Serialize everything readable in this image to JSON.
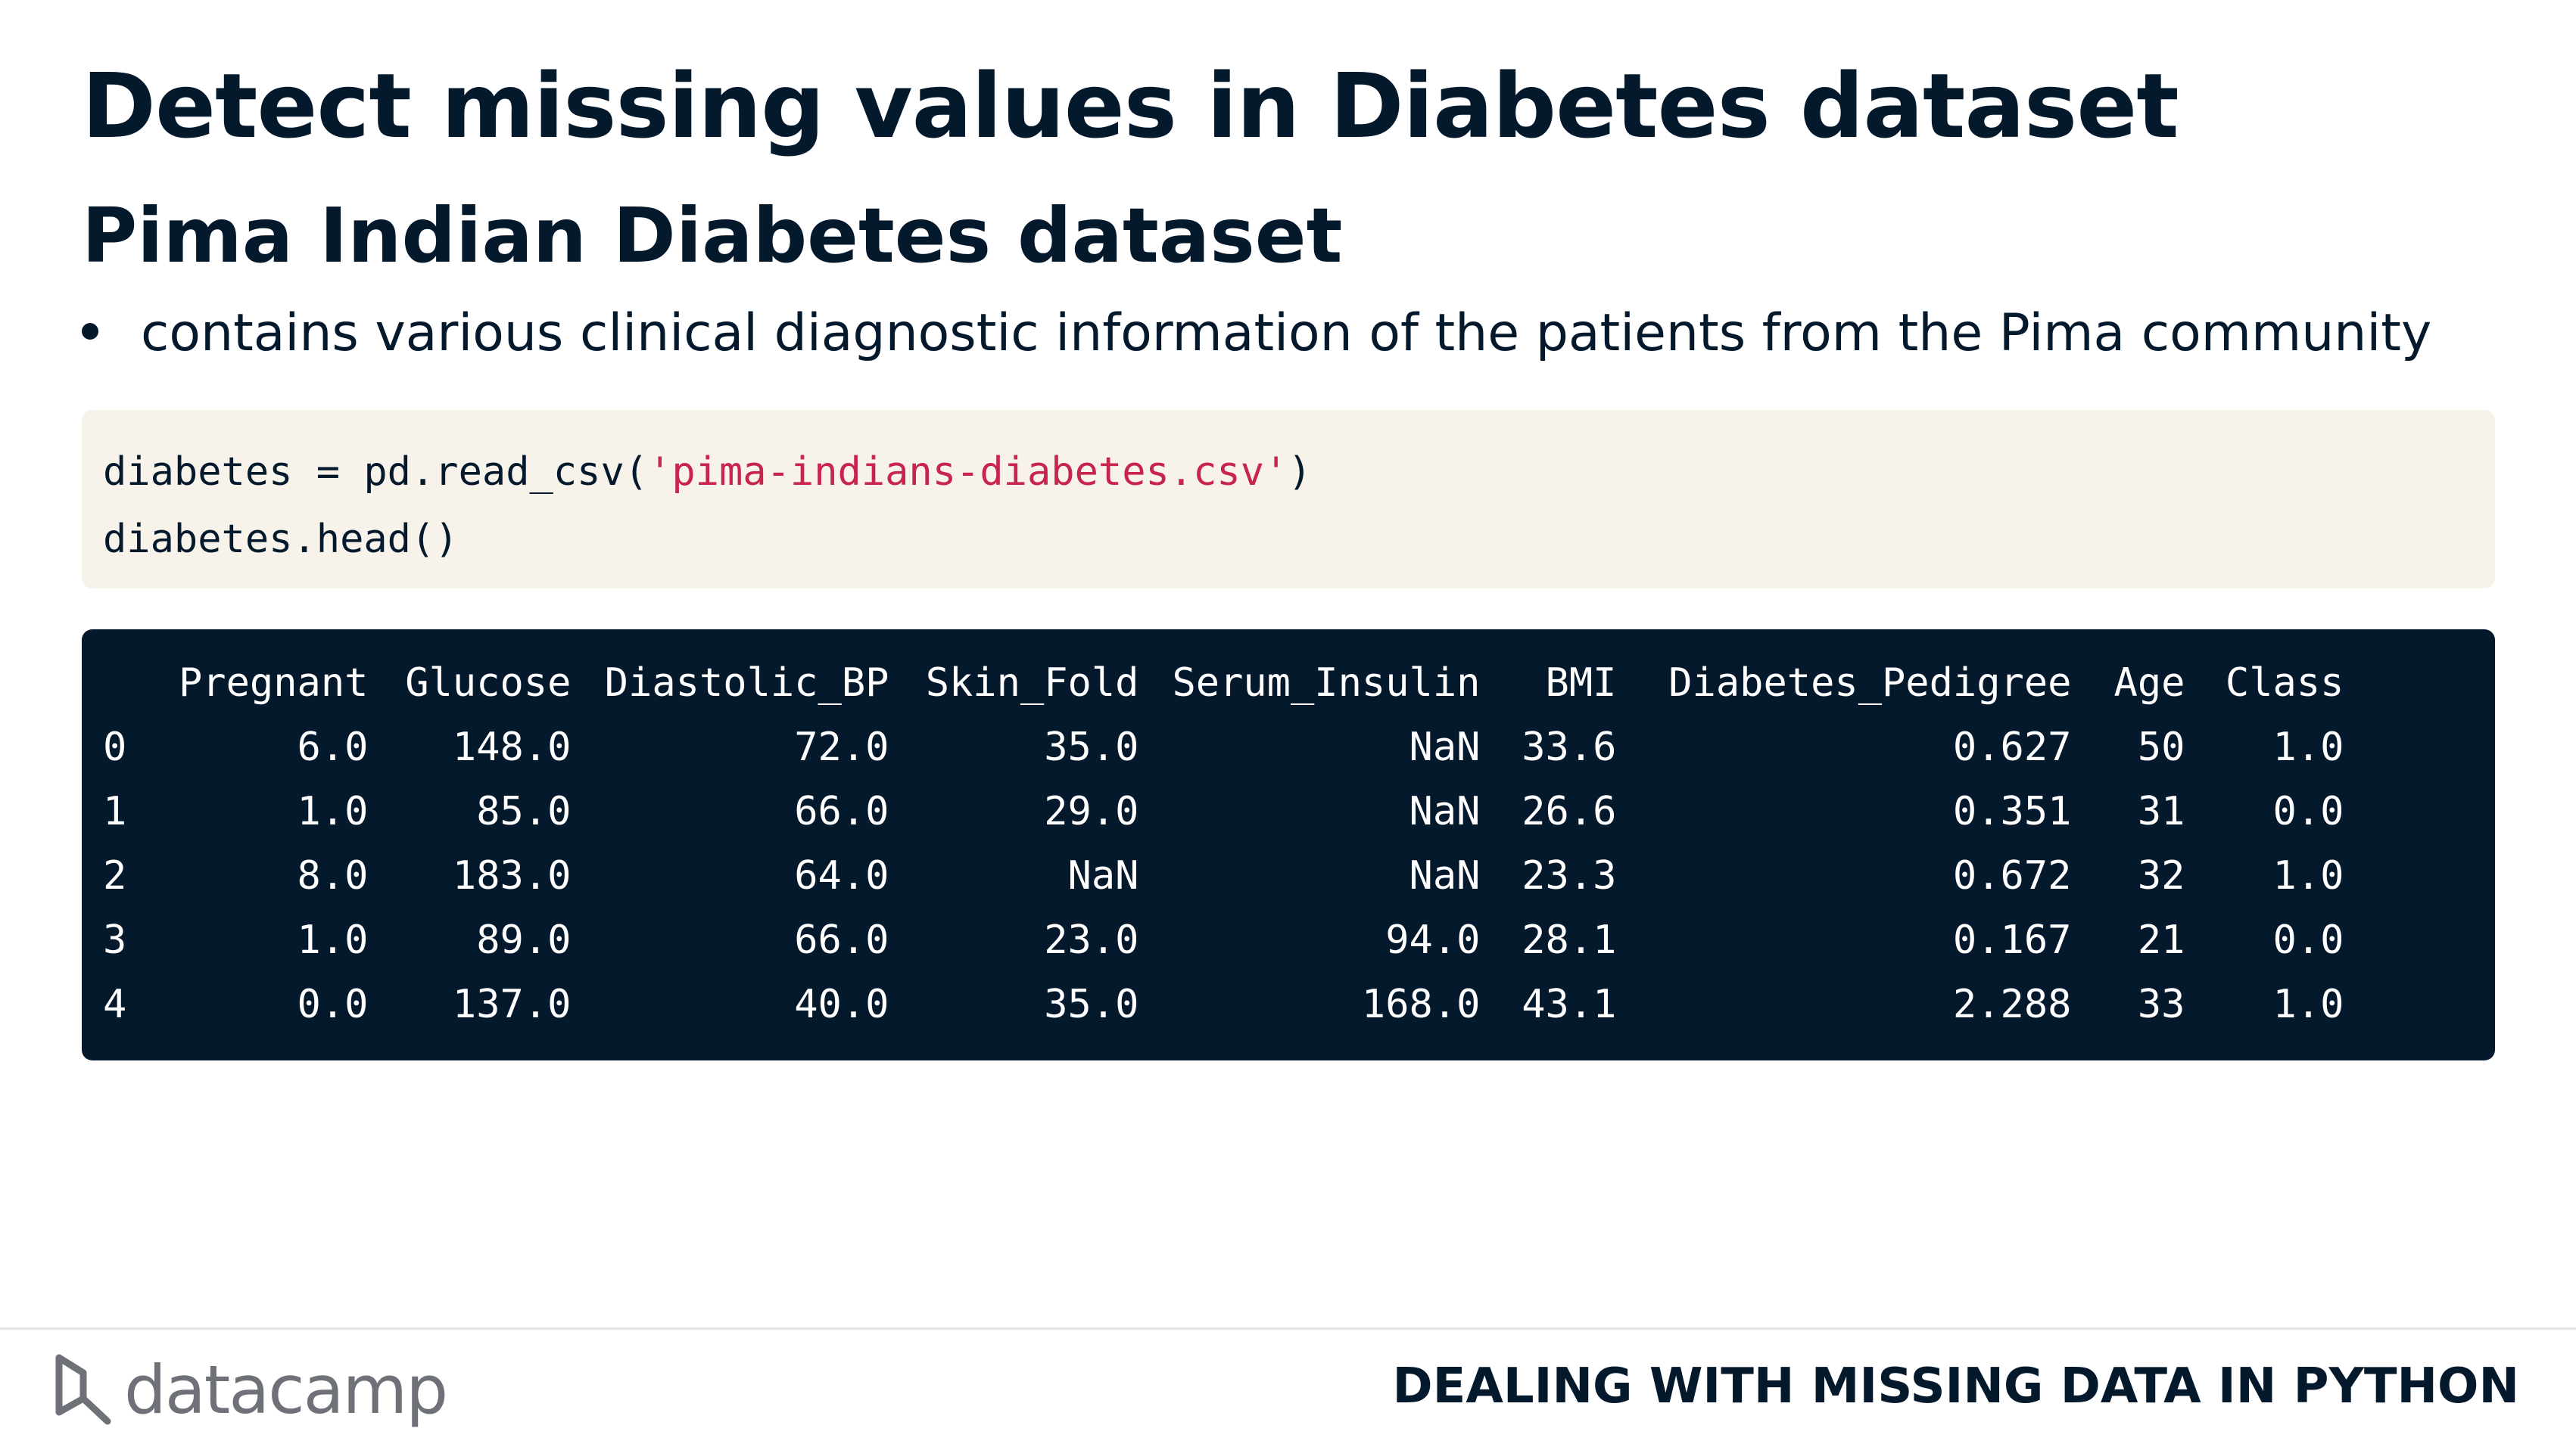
{
  "slide": {
    "title": "Detect missing values in Diabetes dataset",
    "subtitle": "Pima Indian Diabetes dataset",
    "bullets": [
      "contains various clinical diagnostic information of the patients from the Pima community"
    ]
  },
  "code": {
    "line1_prefix": "diabetes = pd.read_csv(",
    "line1_string": "'pima-indians-diabetes.csv'",
    "line1_suffix": ")",
    "line2": "diabetes.head()"
  },
  "output": {
    "columns": [
      "",
      "Pregnant",
      "Glucose",
      "Diastolic_BP",
      "Skin_Fold",
      "Serum_Insulin",
      "BMI",
      "Diabetes_Pedigree",
      "Age",
      "Class"
    ],
    "rows": [
      [
        "0",
        "6.0",
        "148.0",
        "72.0",
        "35.0",
        "NaN",
        "33.6",
        "0.627",
        "50",
        "1.0"
      ],
      [
        "1",
        "1.0",
        "85.0",
        "66.0",
        "29.0",
        "NaN",
        "26.6",
        "0.351",
        "31",
        "0.0"
      ],
      [
        "2",
        "8.0",
        "183.0",
        "64.0",
        "NaN",
        "NaN",
        "23.3",
        "0.672",
        "32",
        "1.0"
      ],
      [
        "3",
        "1.0",
        "89.0",
        "66.0",
        "23.0",
        "94.0",
        "28.1",
        "0.167",
        "21",
        "0.0"
      ],
      [
        "4",
        "0.0",
        "137.0",
        "40.0",
        "35.0",
        "168.0",
        "43.1",
        "2.288",
        "33",
        "1.0"
      ]
    ]
  },
  "footer": {
    "logo_text": "datacamp",
    "logo_icon": "datacamp-logo-icon",
    "course_title": "DEALING WITH MISSING DATA IN PYTHON"
  },
  "colors": {
    "text": "#05192d",
    "code_bg": "#f7f3eb",
    "output_bg": "#05192d",
    "string": "#c7254e"
  }
}
